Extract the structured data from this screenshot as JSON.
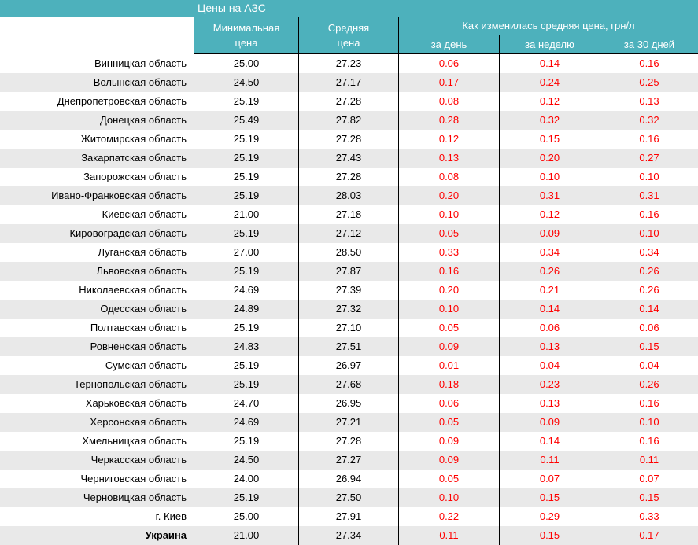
{
  "title": "Цены на АЗС",
  "headers": {
    "min_line1": "Минимальная",
    "min_line2": "цена",
    "avg_line1": "Средняя",
    "avg_line2": "цена",
    "group": "Как изменилась средняя цена, грн/л",
    "day": "за день",
    "week": "за неделю",
    "month": "за 30 дней"
  },
  "colors": {
    "teal": "#4DB1BC",
    "stripe": "#E9E9E9",
    "change_red": "#FF0000",
    "text": "#000000",
    "header_text": "#FFFFFF"
  },
  "chart_data": {
    "type": "table",
    "title": "Цены на АЗС",
    "columns": [
      "",
      "Минимальная цена",
      "Средняя цена",
      "за день",
      "за неделю",
      "за 30 дней"
    ],
    "group_header": "Как изменилась средняя цена, грн/л",
    "rows": [
      {
        "region": "Винницкая область",
        "min": "25.00",
        "avg": "27.23",
        "day": "0.06",
        "week": "0.14",
        "month": "0.16",
        "bold": false
      },
      {
        "region": "Волынская область",
        "min": "24.50",
        "avg": "27.17",
        "day": "0.17",
        "week": "0.24",
        "month": "0.25",
        "bold": false
      },
      {
        "region": "Днепропетровская область",
        "min": "25.19",
        "avg": "27.28",
        "day": "0.08",
        "week": "0.12",
        "month": "0.13",
        "bold": false
      },
      {
        "region": "Донецкая область",
        "min": "25.49",
        "avg": "27.82",
        "day": "0.28",
        "week": "0.32",
        "month": "0.32",
        "bold": false
      },
      {
        "region": "Житомирская область",
        "min": "25.19",
        "avg": "27.28",
        "day": "0.12",
        "week": "0.15",
        "month": "0.16",
        "bold": false
      },
      {
        "region": "Закарпатская область",
        "min": "25.19",
        "avg": "27.43",
        "day": "0.13",
        "week": "0.20",
        "month": "0.27",
        "bold": false
      },
      {
        "region": "Запорожская область",
        "min": "25.19",
        "avg": "27.28",
        "day": "0.08",
        "week": "0.10",
        "month": "0.10",
        "bold": false
      },
      {
        "region": "Ивано-Франковская область",
        "min": "25.19",
        "avg": "28.03",
        "day": "0.20",
        "week": "0.31",
        "month": "0.31",
        "bold": false
      },
      {
        "region": "Киевская область",
        "min": "21.00",
        "avg": "27.18",
        "day": "0.10",
        "week": "0.12",
        "month": "0.16",
        "bold": false
      },
      {
        "region": "Кировоградская область",
        "min": "25.19",
        "avg": "27.12",
        "day": "0.05",
        "week": "0.09",
        "month": "0.10",
        "bold": false
      },
      {
        "region": "Луганская область",
        "min": "27.00",
        "avg": "28.50",
        "day": "0.33",
        "week": "0.34",
        "month": "0.34",
        "bold": false
      },
      {
        "region": "Львовская область",
        "min": "25.19",
        "avg": "27.87",
        "day": "0.16",
        "week": "0.26",
        "month": "0.26",
        "bold": false
      },
      {
        "region": "Николаевская область",
        "min": "24.69",
        "avg": "27.39",
        "day": "0.20",
        "week": "0.21",
        "month": "0.26",
        "bold": false
      },
      {
        "region": "Одесская область",
        "min": "24.89",
        "avg": "27.32",
        "day": "0.10",
        "week": "0.14",
        "month": "0.14",
        "bold": false
      },
      {
        "region": "Полтавская область",
        "min": "25.19",
        "avg": "27.10",
        "day": "0.05",
        "week": "0.06",
        "month": "0.06",
        "bold": false
      },
      {
        "region": "Ровненская область",
        "min": "24.83",
        "avg": "27.51",
        "day": "0.09",
        "week": "0.13",
        "month": "0.15",
        "bold": false
      },
      {
        "region": "Сумская область",
        "min": "25.19",
        "avg": "26.97",
        "day": "0.01",
        "week": "0.04",
        "month": "0.04",
        "bold": false
      },
      {
        "region": "Тернопольская область",
        "min": "25.19",
        "avg": "27.68",
        "day": "0.18",
        "week": "0.23",
        "month": "0.26",
        "bold": false
      },
      {
        "region": "Харьковская область",
        "min": "24.70",
        "avg": "26.95",
        "day": "0.06",
        "week": "0.13",
        "month": "0.16",
        "bold": false
      },
      {
        "region": "Херсонская область",
        "min": "24.69",
        "avg": "27.21",
        "day": "0.05",
        "week": "0.09",
        "month": "0.10",
        "bold": false
      },
      {
        "region": "Хмельницкая область",
        "min": "25.19",
        "avg": "27.28",
        "day": "0.09",
        "week": "0.14",
        "month": "0.16",
        "bold": false
      },
      {
        "region": "Черкасская область",
        "min": "24.50",
        "avg": "27.27",
        "day": "0.09",
        "week": "0.11",
        "month": "0.11",
        "bold": false
      },
      {
        "region": "Черниговская область",
        "min": "24.00",
        "avg": "26.94",
        "day": "0.05",
        "week": "0.07",
        "month": "0.07",
        "bold": false
      },
      {
        "region": "Черновицкая область",
        "min": "25.19",
        "avg": "27.50",
        "day": "0.10",
        "week": "0.15",
        "month": "0.15",
        "bold": false
      },
      {
        "region": "г. Киев",
        "min": "25.00",
        "avg": "27.91",
        "day": "0.22",
        "week": "0.29",
        "month": "0.33",
        "bold": false
      },
      {
        "region": "Украина",
        "min": "21.00",
        "avg": "27.34",
        "day": "0.11",
        "week": "0.15",
        "month": "0.17",
        "bold": true
      }
    ]
  }
}
